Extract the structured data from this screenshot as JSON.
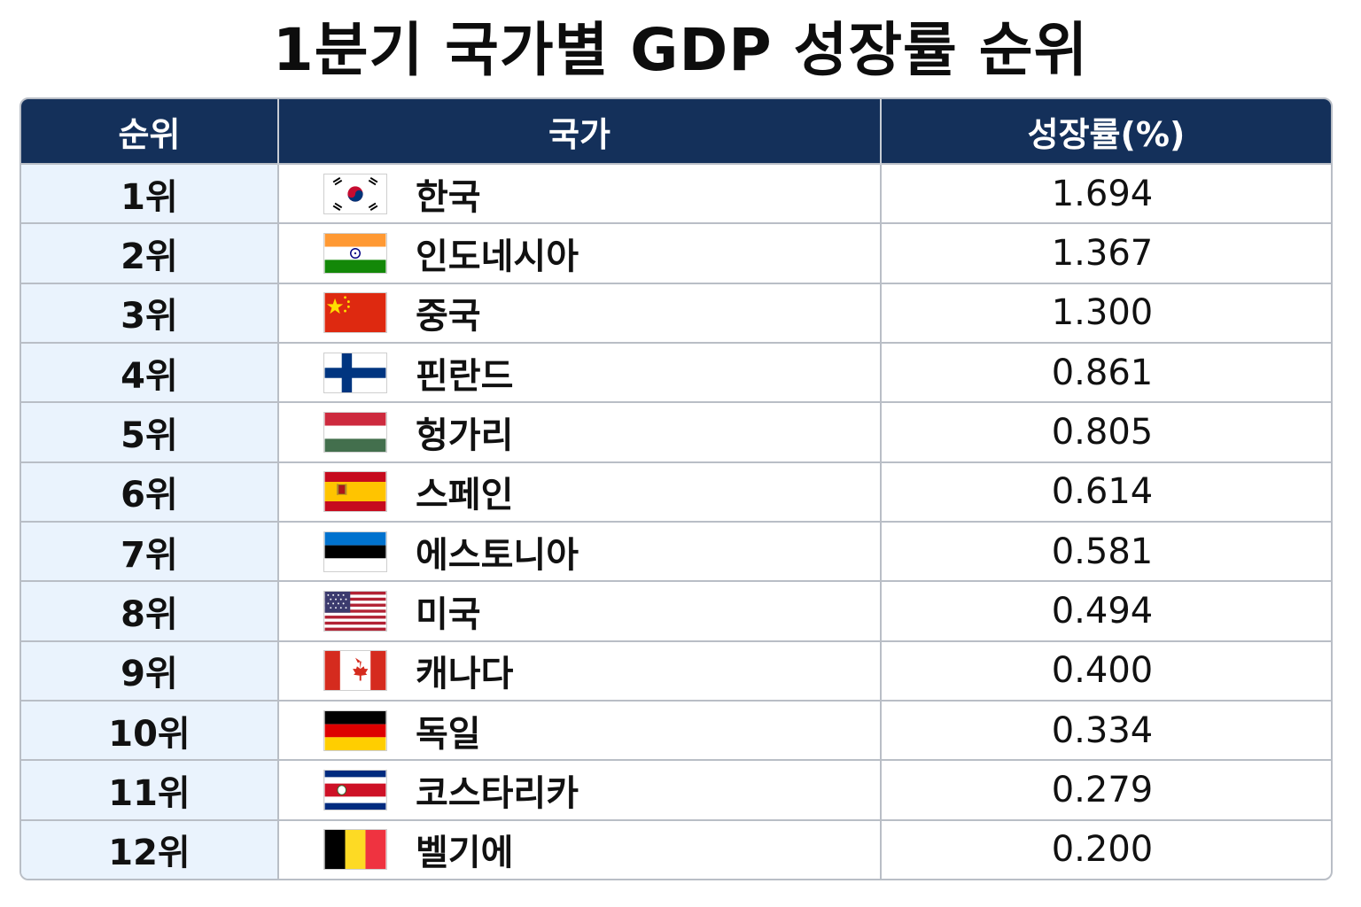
{
  "title": "1분기 국가별 GDP 성장률 순위",
  "headers": {
    "rank": "순위",
    "country": "국가",
    "growth": "성장률(%)"
  },
  "rows": [
    {
      "rank": "1위",
      "country": "한국",
      "growth": "1.694",
      "flag_icon": "south-korea-flag-icon"
    },
    {
      "rank": "2위",
      "country": "인도네시아",
      "growth": "1.367",
      "flag_icon": "india-flag-icon"
    },
    {
      "rank": "3위",
      "country": "중국",
      "growth": "1.300",
      "flag_icon": "china-flag-icon"
    },
    {
      "rank": "4위",
      "country": "핀란드",
      "growth": "0.861",
      "flag_icon": "finland-flag-icon"
    },
    {
      "rank": "5위",
      "country": "헝가리",
      "growth": "0.805",
      "flag_icon": "hungary-flag-icon"
    },
    {
      "rank": "6위",
      "country": "스페인",
      "growth": "0.614",
      "flag_icon": "spain-flag-icon"
    },
    {
      "rank": "7위",
      "country": "에스토니아",
      "growth": "0.581",
      "flag_icon": "estonia-flag-icon"
    },
    {
      "rank": "8위",
      "country": "미국",
      "growth": "0.494",
      "flag_icon": "usa-flag-icon"
    },
    {
      "rank": "9위",
      "country": "캐나다",
      "growth": "0.400",
      "flag_icon": "canada-flag-icon"
    },
    {
      "rank": "10위",
      "country": "독일",
      "growth": "0.334",
      "flag_icon": "germany-flag-icon"
    },
    {
      "rank": "11위",
      "country": "코스타리카",
      "growth": "0.279",
      "flag_icon": "costa-rica-flag-icon"
    },
    {
      "rank": "12위",
      "country": "벨기에",
      "growth": "0.200",
      "flag_icon": "belgium-flag-icon"
    }
  ],
  "colors": {
    "header_bg": "#14305a",
    "rank_bg": "#eaf3fd",
    "border": "#b9bec6"
  }
}
